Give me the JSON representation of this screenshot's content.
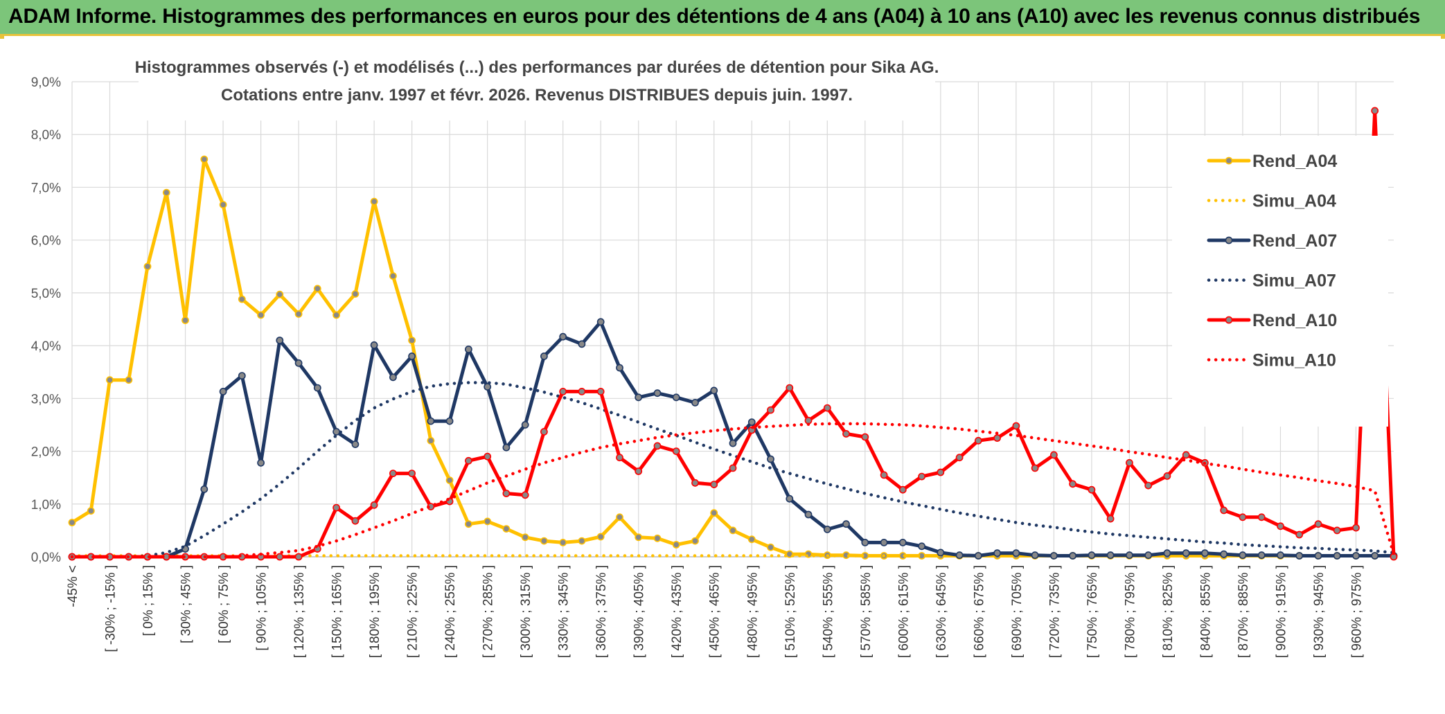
{
  "banner": {
    "title": "ADAM Informe. Histogrammes des performances en euros pour des détentions de 4 ans (A04) à 10 ans (A10) avec les revenus connus distribués"
  },
  "colors": {
    "banner_bg": "#7cc57a",
    "banner_accent": "#e8c23a",
    "A04": "#ffc000",
    "A07": "#1f3864",
    "A10": "#ff0000"
  },
  "chart_data": {
    "type": "line",
    "title_lines": [
      "Histogrammes observés (-) et modélisés (...) des performances par durées de détention pour Sika AG.",
      "Cotations entre janv. 1997 et févr. 2026. Revenus DISTRIBUES depuis juin. 1997."
    ],
    "ylim": [
      0,
      9
    ],
    "y_ticks": [
      "0,0%",
      "1,0%",
      "2,0%",
      "3,0%",
      "4,0%",
      "5,0%",
      "6,0%",
      "7,0%",
      "8,0%",
      "9,0%"
    ],
    "x_labels": [
      "-45% <",
      "[ -30% ; -15% ]",
      "[ 0% ; 15% ]",
      "[ 30% ; 45% ]",
      "[ 60% ; 75% ]",
      "[ 90% ; 105% ]",
      "[ 120% ; 135% ]",
      "[ 150% ; 165% ]",
      "[ 180% ; 195% ]",
      "[ 210% ; 225% ]",
      "[ 240% ; 255% ]",
      "[ 270% ; 285% ]",
      "[ 300% ; 315% ]",
      "[ 330% ; 345% ]",
      "[ 360% ; 375% ]",
      "[ 390% ; 405% ]",
      "[ 420% ; 435% ]",
      "[ 450% ; 465% ]",
      "[ 480% ; 495% ]",
      "[ 510% ; 525% ]",
      "[ 540% ; 555% ]",
      "[ 570% ; 585% ]",
      "[ 600% ; 615% ]",
      "[ 630% ; 645% ]",
      "[ 660% ; 675% ]",
      "[ 690% ; 705% ]",
      "[ 720% ; 735% ]",
      "[ 750% ; 765% ]",
      "[ 780% ; 795% ]",
      "[ 810% ; 825% ]",
      "[ 840% ; 855% ]",
      "[ 870% ; 885% ]",
      "[ 900% ; 915% ]",
      "[ 930% ; 945% ]",
      "[ 960% ; 975% ]"
    ],
    "legend_position": "right",
    "series": [
      {
        "name": "Rend_A04",
        "style": "solid",
        "color": "#ffc000",
        "values": [
          0.65,
          0.87,
          3.35,
          3.35,
          5.5,
          6.9,
          4.48,
          7.53,
          6.67,
          4.88,
          4.58,
          4.97,
          4.6,
          5.08,
          4.58,
          4.98,
          6.73,
          5.32,
          4.1,
          2.2,
          1.45,
          0.62,
          0.67,
          0.53,
          0.37,
          0.3,
          0.27,
          0.3,
          0.38,
          0.75,
          0.37,
          0.35,
          0.23,
          0.3,
          0.83,
          0.5,
          0.33,
          0.18,
          0.05,
          0.05,
          0.03,
          0.03,
          0.02,
          0.02,
          0.02,
          0.02,
          0.02,
          0.02,
          0.02,
          0.02,
          0.02,
          0.02,
          0.02,
          0.02,
          0.02,
          0.02,
          0.02,
          0.02,
          0.02,
          0.02,
          0.02,
          0.02,
          0.02,
          0.02,
          0.02,
          0.02,
          0.02,
          0.02,
          0.02,
          0.02,
          0.02
        ]
      },
      {
        "name": "Simu_A04",
        "style": "dotted",
        "color": "#ffc000",
        "values": [
          0.02,
          0.02,
          0.02,
          0.02,
          0.02,
          0.02,
          0.02,
          0.02,
          0.02,
          0.02,
          0.02,
          0.02,
          0.02,
          0.02,
          0.02,
          0.02,
          0.02,
          0.02,
          0.02,
          0.02,
          0.02,
          0.02,
          0.02,
          0.02,
          0.02,
          0.02,
          0.02,
          0.02,
          0.02,
          0.02,
          0.02,
          0.02,
          0.02,
          0.02,
          0.02,
          0.02,
          0.02,
          0.02,
          0.02,
          0.02,
          0.02,
          0.02,
          0.02,
          0.02,
          0.02,
          0.02,
          0.02,
          0.02,
          0.02,
          0.02,
          0.02,
          0.02,
          0.02,
          0.02,
          0.02,
          0.02,
          0.02,
          0.02,
          0.02,
          0.02,
          0.02,
          0.02,
          0.02,
          0.02,
          0.02,
          0.02,
          0.02,
          0.02,
          0.02,
          0.02,
          0.02
        ]
      },
      {
        "name": "Rend_A07",
        "style": "solid",
        "color": "#1f3864",
        "values": [
          0.0,
          0.0,
          0.0,
          0.0,
          0.0,
          0.0,
          0.15,
          1.28,
          3.13,
          3.43,
          1.78,
          4.1,
          3.67,
          3.2,
          2.37,
          2.13,
          4.01,
          3.4,
          3.8,
          2.57,
          2.57,
          3.93,
          3.22,
          2.07,
          2.5,
          3.8,
          4.17,
          4.03,
          4.45,
          3.58,
          3.02,
          3.1,
          3.02,
          2.92,
          3.15,
          2.15,
          2.55,
          1.85,
          1.1,
          0.8,
          0.52,
          0.62,
          0.27,
          0.27,
          0.27,
          0.2,
          0.08,
          0.03,
          0.02,
          0.07,
          0.07,
          0.03,
          0.02,
          0.02,
          0.03,
          0.03,
          0.03,
          0.03,
          0.07,
          0.07,
          0.07,
          0.05,
          0.03,
          0.03,
          0.03,
          0.02,
          0.02,
          0.02,
          0.02,
          0.02,
          0.02
        ]
      },
      {
        "name": "Simu_A07",
        "style": "dotted",
        "color": "#1f3864",
        "values": [
          0.0,
          0.0,
          0.0,
          0.0,
          0.02,
          0.08,
          0.2,
          0.4,
          0.62,
          0.85,
          1.1,
          1.38,
          1.68,
          2.0,
          2.3,
          2.58,
          2.82,
          2.99,
          3.13,
          3.23,
          3.28,
          3.3,
          3.3,
          3.27,
          3.2,
          3.12,
          3.02,
          2.92,
          2.8,
          2.68,
          2.55,
          2.42,
          2.3,
          2.17,
          2.04,
          1.92,
          1.8,
          1.68,
          1.58,
          1.48,
          1.38,
          1.29,
          1.2,
          1.12,
          1.04,
          0.97,
          0.9,
          0.83,
          0.77,
          0.71,
          0.65,
          0.6,
          0.56,
          0.51,
          0.47,
          0.43,
          0.4,
          0.37,
          0.34,
          0.31,
          0.28,
          0.26,
          0.23,
          0.21,
          0.19,
          0.17,
          0.16,
          0.14,
          0.13,
          0.11,
          0.08
        ]
      },
      {
        "name": "Rend_A10",
        "style": "solid",
        "color": "#ff0000",
        "values": [
          0.0,
          0.0,
          0.0,
          0.0,
          0.0,
          0.0,
          0.0,
          0.0,
          0.0,
          0.0,
          0.0,
          0.0,
          0.0,
          0.15,
          0.93,
          0.68,
          0.98,
          1.58,
          1.58,
          0.95,
          1.05,
          1.82,
          1.9,
          1.2,
          1.17,
          2.37,
          3.13,
          3.13,
          3.13,
          1.88,
          1.62,
          2.1,
          2.0,
          1.4,
          1.37,
          1.68,
          2.4,
          2.78,
          3.2,
          2.58,
          2.82,
          2.33,
          2.27,
          1.55,
          1.27,
          1.52,
          1.6,
          1.88,
          2.2,
          2.25,
          2.48,
          1.68,
          1.93,
          1.38,
          1.27,
          0.72,
          1.78,
          1.35,
          1.53,
          1.93,
          1.78,
          0.88,
          0.75,
          0.75,
          0.58,
          0.42,
          0.62,
          0.5,
          0.55,
          8.45,
          0.0
        ]
      },
      {
        "name": "Simu_A10",
        "style": "dotted",
        "color": "#ff0000",
        "values": [
          0.0,
          0.0,
          0.0,
          0.0,
          0.0,
          0.0,
          0.0,
          0.0,
          0.0,
          0.02,
          0.05,
          0.08,
          0.12,
          0.2,
          0.3,
          0.42,
          0.55,
          0.68,
          0.82,
          0.96,
          1.1,
          1.25,
          1.4,
          1.53,
          1.66,
          1.78,
          1.88,
          1.98,
          2.07,
          2.14,
          2.2,
          2.26,
          2.31,
          2.35,
          2.39,
          2.42,
          2.45,
          2.47,
          2.49,
          2.51,
          2.52,
          2.52,
          2.52,
          2.51,
          2.5,
          2.48,
          2.45,
          2.42,
          2.38,
          2.34,
          2.3,
          2.25,
          2.2,
          2.15,
          2.1,
          2.05,
          1.99,
          1.94,
          1.88,
          1.83,
          1.77,
          1.72,
          1.66,
          1.6,
          1.55,
          1.5,
          1.44,
          1.39,
          1.33,
          1.25,
          0.05
        ]
      }
    ]
  }
}
